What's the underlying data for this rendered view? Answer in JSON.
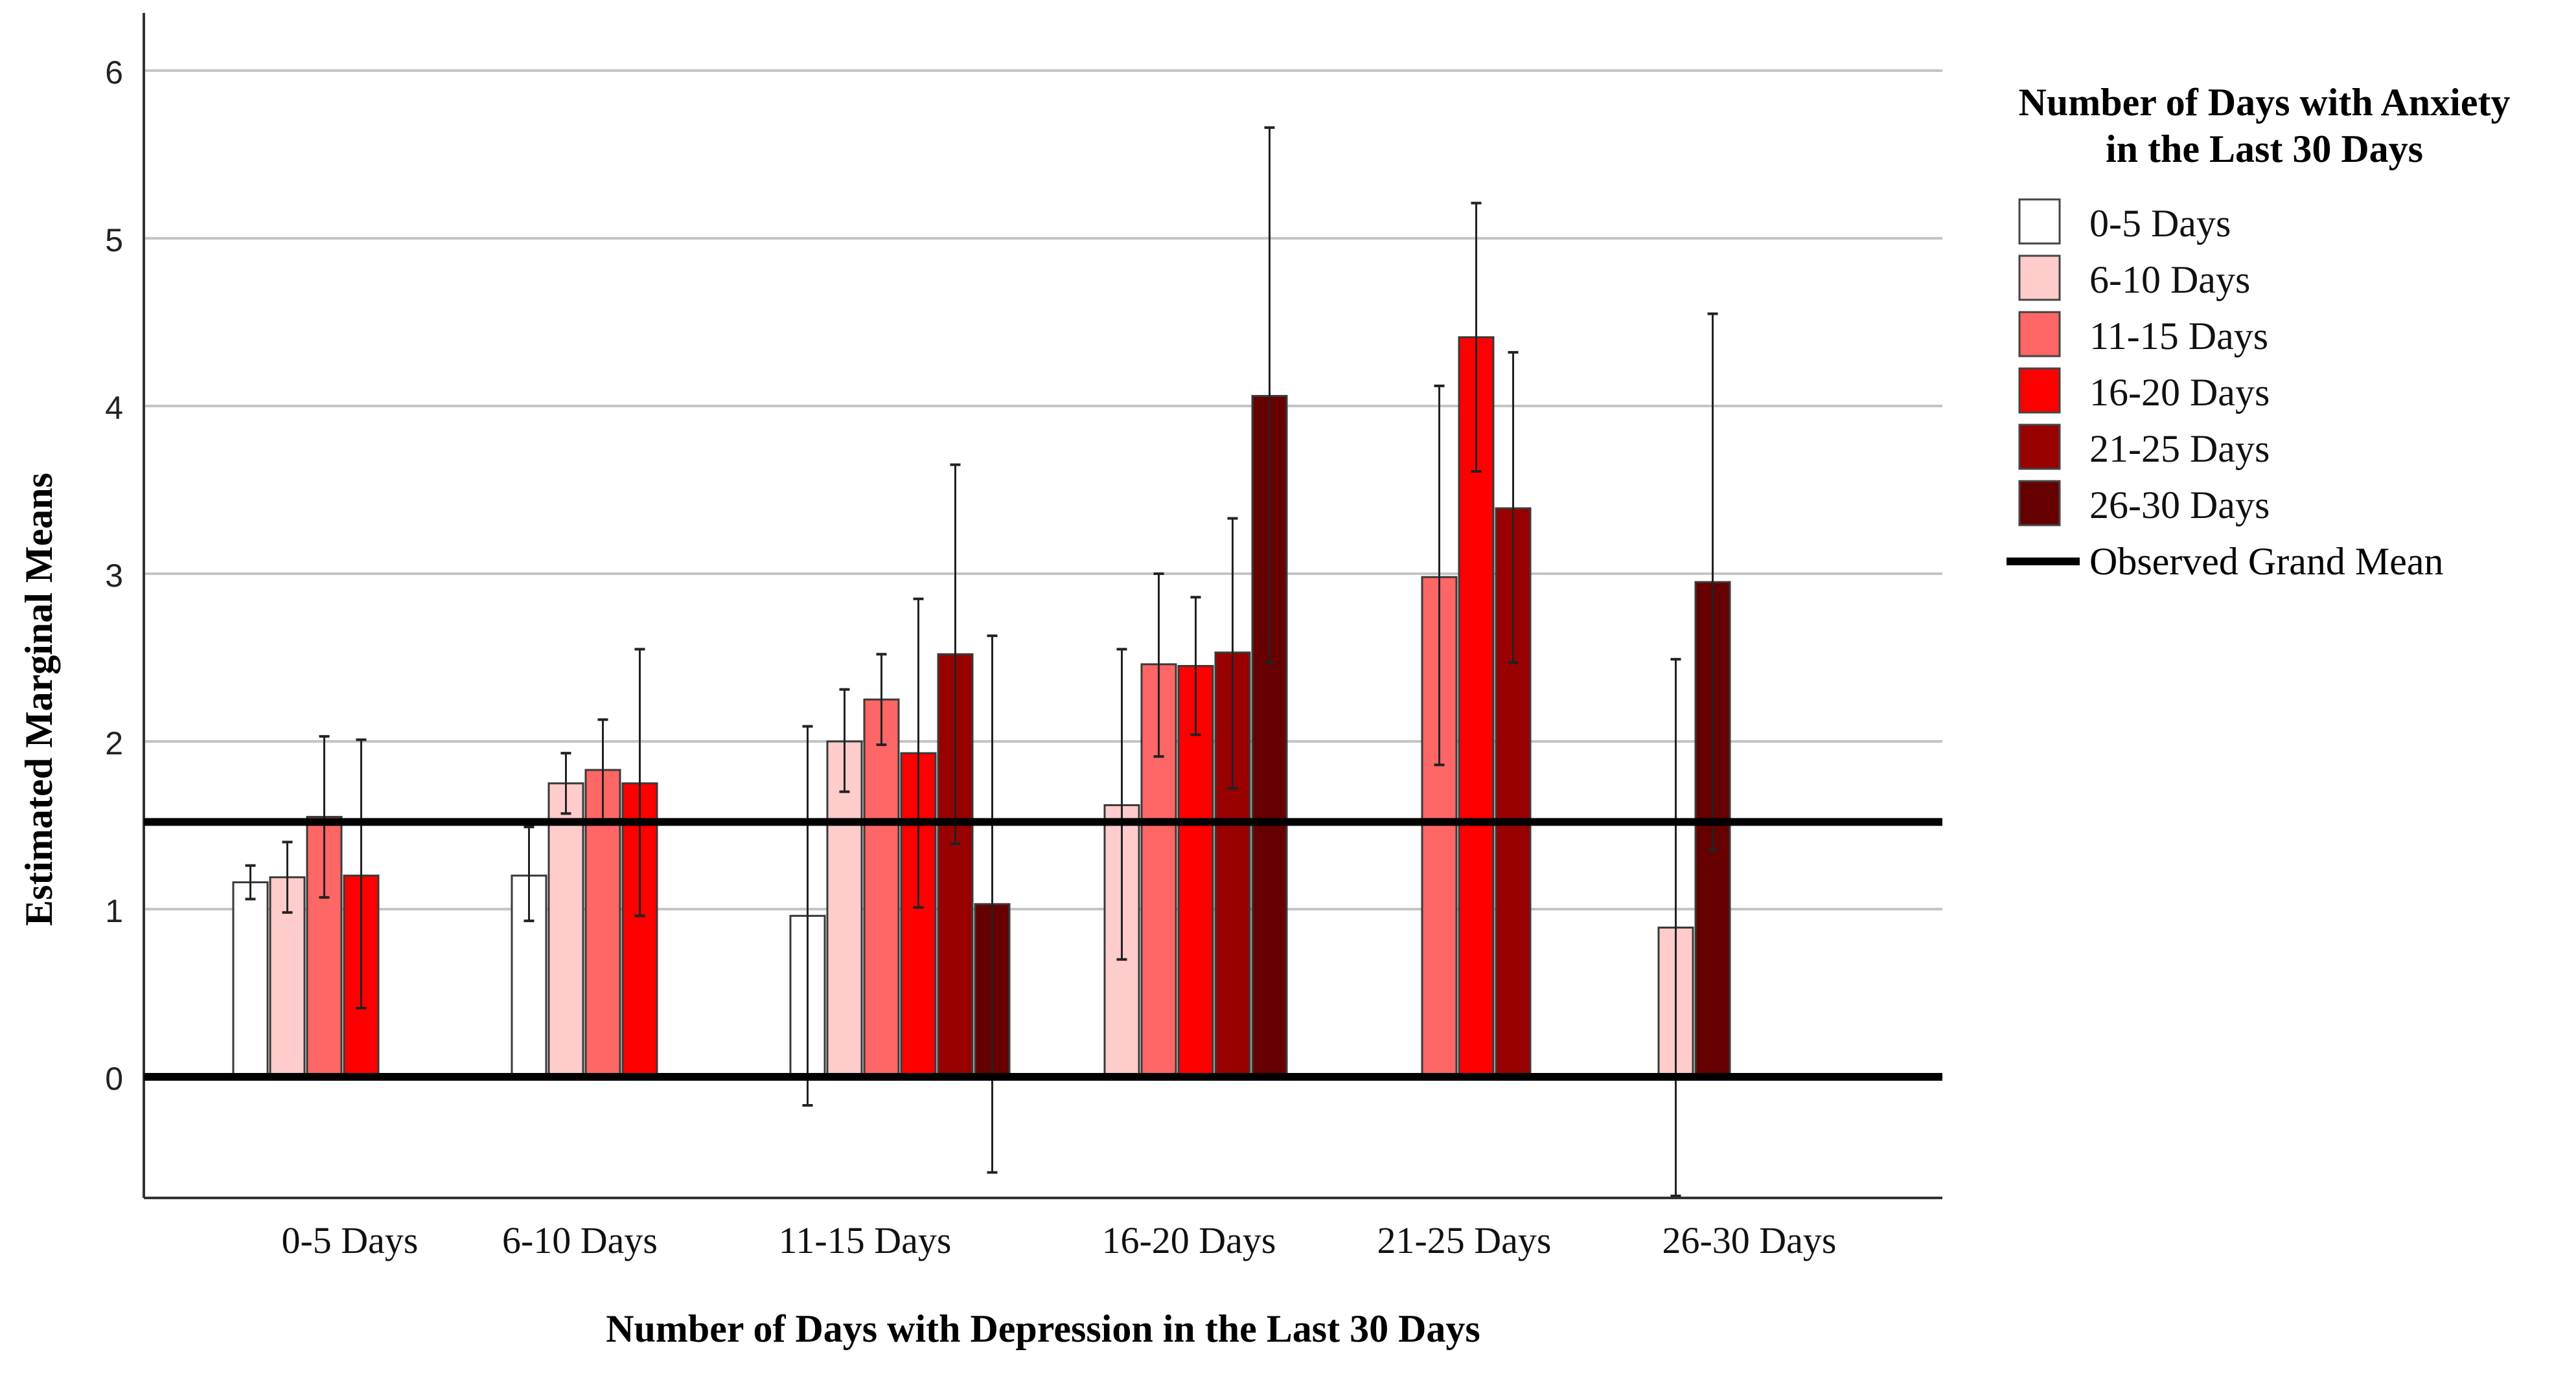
{
  "chart_data": {
    "type": "bar",
    "ylabel": "Estimated Marginal Means",
    "xlabel": "Number of Days with Depression in the Last 30 Days",
    "ylim": [
      -0.7,
      6.35
    ],
    "yticks": [
      "6",
      "5",
      "4",
      "3",
      "2",
      "1",
      "0"
    ],
    "ytick_values": [
      6,
      5,
      4,
      3,
      2,
      1,
      0
    ],
    "grid": true,
    "categories": [
      "0-5 Days",
      "6-10 Days",
      "11-15 Days",
      "16-20 Days",
      "21-25 Days",
      "26-30 Days"
    ],
    "legend": {
      "title_line1": "Number of Days with Anxiety",
      "title_line2": "in the Last 30 Days",
      "position": "right",
      "grand_mean_label": "Observed Grand Mean"
    },
    "grand_mean": 1.52,
    "series": [
      {
        "name": "0-5 Days",
        "color": "#ffffff",
        "values": [
          1.16,
          1.2,
          0.96,
          null,
          null,
          null
        ],
        "err_low": [
          1.06,
          0.93,
          -0.17,
          null,
          null,
          null
        ],
        "err_high": [
          1.26,
          1.49,
          2.09,
          null,
          null,
          null
        ]
      },
      {
        "name": "6-10 Days",
        "color": "#ffcccc",
        "values": [
          1.19,
          1.75,
          2.0,
          1.62,
          null,
          0.89
        ],
        "err_low": [
          0.98,
          1.57,
          1.7,
          0.7,
          null,
          -0.71
        ],
        "err_high": [
          1.4,
          1.93,
          2.31,
          2.55,
          null,
          2.49
        ]
      },
      {
        "name": "11-15 Days",
        "color": "#ff6666",
        "values": [
          1.55,
          1.83,
          2.25,
          2.46,
          2.98,
          null
        ],
        "err_low": [
          1.07,
          1.53,
          1.98,
          1.91,
          1.86,
          null
        ],
        "err_high": [
          2.03,
          2.13,
          2.52,
          3.0,
          4.12,
          null
        ]
      },
      {
        "name": "16-20 Days",
        "color": "#ff0000",
        "values": [
          1.2,
          1.75,
          1.93,
          2.45,
          4.41,
          null
        ],
        "err_low": [
          0.41,
          0.96,
          1.01,
          2.04,
          3.61,
          null
        ],
        "err_high": [
          2.01,
          2.55,
          2.85,
          2.86,
          5.21,
          null
        ]
      },
      {
        "name": "21-25 Days",
        "color": "#990000",
        "values": [
          null,
          null,
          2.52,
          2.53,
          3.39,
          null
        ],
        "err_low": [
          null,
          null,
          1.39,
          1.72,
          2.47,
          null
        ],
        "err_high": [
          null,
          null,
          3.65,
          3.33,
          4.32,
          null
        ]
      },
      {
        "name": "26-30 Days",
        "color": "#660000",
        "values": [
          null,
          null,
          1.03,
          4.06,
          null,
          2.95
        ],
        "err_low": [
          null,
          null,
          -0.57,
          2.47,
          null,
          1.35
        ],
        "err_high": [
          null,
          null,
          2.63,
          5.66,
          null,
          4.55
        ]
      }
    ]
  }
}
